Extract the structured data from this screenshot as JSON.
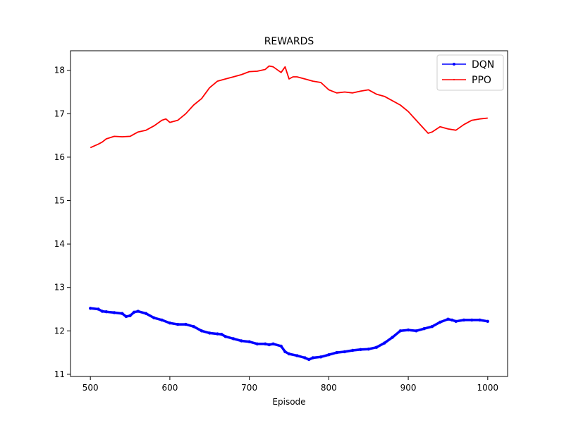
{
  "chart_data": {
    "type": "line",
    "title": "REWARDS",
    "xlabel": "Episode",
    "ylabel": "",
    "xlim": [
      475,
      1025
    ],
    "ylim": [
      10.95,
      18.45
    ],
    "xticks": [
      500,
      600,
      700,
      800,
      900,
      1000
    ],
    "yticks": [
      11,
      12,
      13,
      14,
      15,
      16,
      17,
      18
    ],
    "grid": false,
    "legend": "top-right",
    "series": [
      {
        "name": "DQN",
        "color": "#0000ff",
        "marker": "dot",
        "x": [
          500,
          510,
          515,
          520,
          530,
          540,
          545,
          550,
          555,
          560,
          570,
          580,
          590,
          600,
          610,
          620,
          630,
          640,
          650,
          660,
          665,
          670,
          680,
          690,
          700,
          710,
          720,
          725,
          730,
          740,
          745,
          750,
          760,
          770,
          775,
          780,
          790,
          800,
          810,
          820,
          830,
          840,
          850,
          860,
          870,
          880,
          890,
          900,
          910,
          920,
          930,
          940,
          950,
          955,
          960,
          970,
          980,
          990,
          1000
        ],
        "y": [
          12.52,
          12.5,
          12.45,
          12.44,
          12.42,
          12.4,
          12.33,
          12.35,
          12.43,
          12.45,
          12.4,
          12.3,
          12.25,
          12.18,
          12.15,
          12.15,
          12.1,
          12.0,
          11.95,
          11.93,
          11.92,
          11.87,
          11.82,
          11.77,
          11.75,
          11.7,
          11.7,
          11.68,
          11.7,
          11.65,
          11.52,
          11.47,
          11.43,
          11.38,
          11.34,
          11.38,
          11.4,
          11.45,
          11.5,
          11.52,
          11.55,
          11.57,
          11.58,
          11.62,
          11.72,
          11.85,
          12.0,
          12.02,
          12.0,
          12.05,
          12.1,
          12.2,
          12.27,
          12.25,
          12.22,
          12.25,
          12.25,
          12.25,
          12.22
        ]
      },
      {
        "name": "PPO",
        "color": "#ff0000",
        "marker": "none",
        "x": [
          500,
          510,
          515,
          520,
          530,
          540,
          550,
          560,
          570,
          580,
          590,
          595,
          600,
          610,
          620,
          630,
          640,
          650,
          660,
          670,
          680,
          690,
          700,
          710,
          720,
          725,
          730,
          740,
          745,
          750,
          755,
          760,
          770,
          780,
          790,
          800,
          810,
          820,
          830,
          840,
          850,
          860,
          870,
          880,
          890,
          900,
          910,
          920,
          925,
          930,
          940,
          950,
          960,
          970,
          980,
          990,
          1000
        ],
        "y": [
          16.22,
          16.3,
          16.35,
          16.42,
          16.48,
          16.47,
          16.48,
          16.58,
          16.62,
          16.72,
          16.85,
          16.88,
          16.8,
          16.85,
          17.0,
          17.2,
          17.35,
          17.6,
          17.75,
          17.8,
          17.85,
          17.9,
          17.97,
          17.98,
          18.02,
          18.1,
          18.08,
          17.95,
          18.08,
          17.8,
          17.85,
          17.85,
          17.8,
          17.75,
          17.72,
          17.55,
          17.48,
          17.5,
          17.48,
          17.52,
          17.55,
          17.45,
          17.4,
          17.3,
          17.2,
          17.05,
          16.85,
          16.65,
          16.55,
          16.58,
          16.7,
          16.65,
          16.62,
          16.75,
          16.85,
          16.88,
          16.9
        ]
      }
    ]
  }
}
